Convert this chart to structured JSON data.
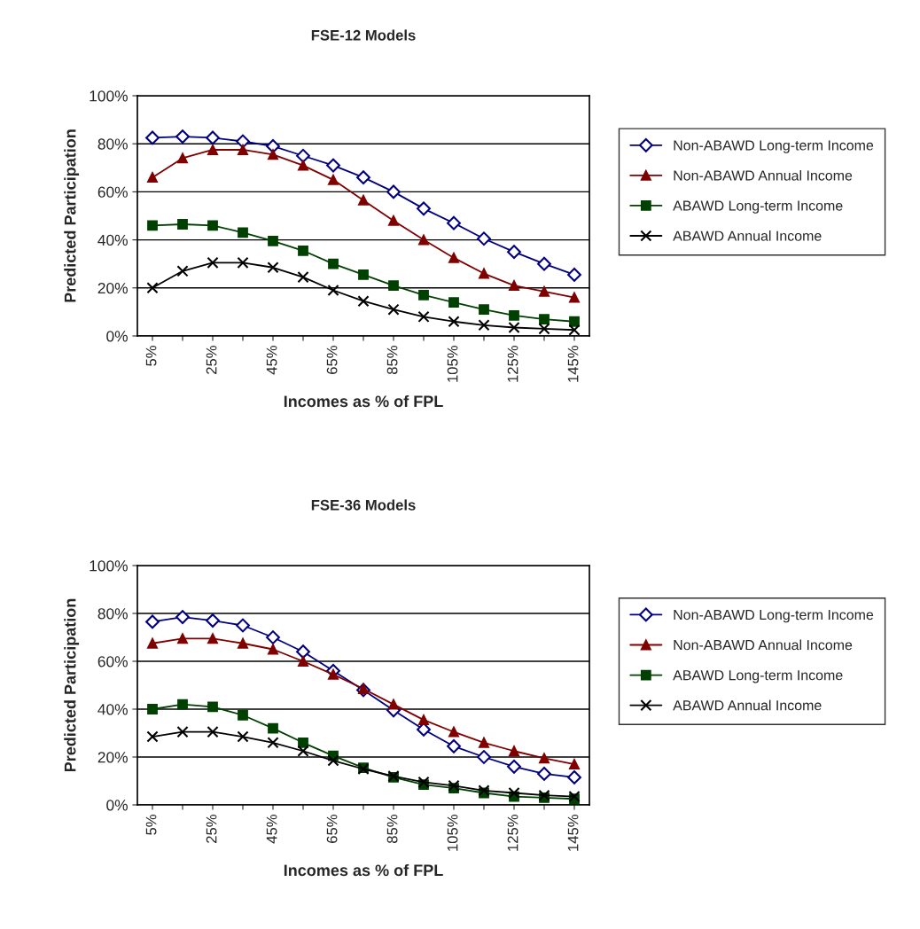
{
  "chart_data": [
    {
      "type": "line",
      "title": "FSE-12 Models",
      "xlabel": "Incomes as % of FPL",
      "ylabel": "Predicted Participation",
      "categories": [
        "5%",
        null,
        "25%",
        null,
        "45%",
        null,
        "65%",
        null,
        "85%",
        null,
        "105%",
        null,
        "125%",
        null,
        "145%"
      ],
      "series": [
        {
          "name": "Non-ABAWD Long-term Income",
          "color": "#000080",
          "marker": "diamond",
          "values": [
            82.5,
            83,
            82.5,
            81,
            79,
            75,
            71,
            66,
            60,
            53,
            47,
            40.5,
            35,
            30,
            25.5
          ]
        },
        {
          "name": "Non-ABAWD Annual Income",
          "color": "#800000",
          "marker": "triangle",
          "values": [
            66,
            74,
            77.5,
            77.5,
            75.5,
            71,
            65,
            56.5,
            48,
            40,
            32.5,
            26,
            21,
            18.5,
            16
          ]
        },
        {
          "name": "ABAWD Long-term Income",
          "color": "#004000",
          "marker": "square",
          "values": [
            46,
            46.5,
            46,
            43,
            39.5,
            35.5,
            30,
            25.5,
            21,
            17,
            14,
            11,
            8.5,
            7,
            6
          ]
        },
        {
          "name": "ABAWD Annual Income",
          "color": "#000000",
          "marker": "cross",
          "values": [
            20,
            27,
            30.5,
            30.5,
            28.5,
            24.5,
            19,
            14.5,
            11,
            8,
            6,
            4.5,
            3.5,
            3,
            2.5
          ]
        }
      ],
      "ylim": [
        0,
        100
      ],
      "yticks": [
        {
          "value": 0,
          "label": "0%"
        },
        {
          "value": 20,
          "label": "20%"
        },
        {
          "value": 40,
          "label": "40%"
        },
        {
          "value": 60,
          "label": "60%"
        },
        {
          "value": 80,
          "label": "80%"
        },
        {
          "value": 100,
          "label": "100%"
        }
      ],
      "grid": "y",
      "legend": "right",
      "line_style": "solid"
    },
    {
      "type": "line",
      "title": "FSE-36 Models",
      "xlabel": "Incomes as % of FPL",
      "ylabel": "Predicted Participation",
      "categories": [
        "5%",
        null,
        "25%",
        null,
        "45%",
        null,
        "65%",
        null,
        "85%",
        null,
        "105%",
        null,
        "125%",
        null,
        "145%"
      ],
      "series": [
        {
          "name": "Non-ABAWD Long-term Income",
          "color": "#000080",
          "marker": "diamond",
          "values": [
            76.5,
            78.5,
            77,
            75,
            70,
            64,
            56,
            48,
            39.5,
            31.5,
            24.5,
            20,
            16,
            13,
            11.5
          ]
        },
        {
          "name": "Non-ABAWD Annual Income",
          "color": "#800000",
          "marker": "triangle",
          "values": [
            67.5,
            69.5,
            69.5,
            67.5,
            65,
            60,
            54.5,
            48.5,
            42,
            35.5,
            30.5,
            26,
            22.5,
            19.5,
            17
          ]
        },
        {
          "name": "ABAWD Long-term Income",
          "color": "#004000",
          "marker": "square",
          "values": [
            40,
            42,
            41,
            37.5,
            32,
            26,
            20.5,
            15.5,
            11.5,
            8.5,
            7,
            5,
            3.5,
            3,
            2.5
          ]
        },
        {
          "name": "ABAWD Annual Income",
          "color": "#000000",
          "marker": "cross",
          "values": [
            28.5,
            30.5,
            30.5,
            28.5,
            26,
            22.5,
            18.5,
            15,
            12,
            9.5,
            8,
            6,
            5,
            4,
            3.5
          ]
        }
      ],
      "ylim": [
        0,
        100
      ],
      "yticks": [
        {
          "value": 0,
          "label": "0%"
        },
        {
          "value": 20,
          "label": "20%"
        },
        {
          "value": 40,
          "label": "40%"
        },
        {
          "value": 60,
          "label": "60%"
        },
        {
          "value": 80,
          "label": "80%"
        },
        {
          "value": 100,
          "label": "100%"
        }
      ],
      "grid": "y",
      "legend": "right",
      "line_style": "solid"
    }
  ]
}
